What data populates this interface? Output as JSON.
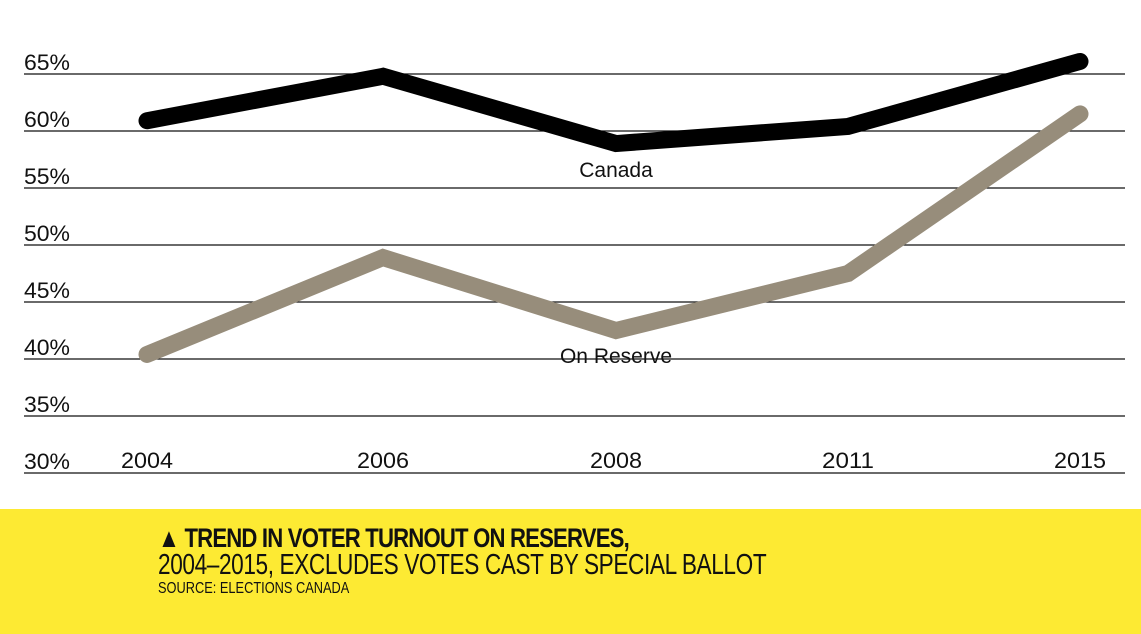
{
  "chart_data": {
    "type": "line",
    "title": "TREND IN VOTER TURNOUT ON RESERVES,",
    "subtitle": "2004–2015, EXCLUDES VOTES CAST BY SPECIAL BALLOT",
    "source": "SOURCE: ELECTIONS CANADA",
    "title_marker": "▲",
    "xlabel": "",
    "ylabel": "",
    "categories": [
      "2004",
      "2006",
      "2008",
      "2011",
      "2015"
    ],
    "y_ticks": [
      "30%",
      "35%",
      "40%",
      "45%",
      "50%",
      "55%",
      "60%",
      "65%"
    ],
    "y_tick_values": [
      30,
      35,
      40,
      45,
      50,
      55,
      60,
      65
    ],
    "ylim": [
      30,
      65
    ],
    "grid": true,
    "legend": "inline-labels",
    "series": [
      {
        "name": "Canada",
        "color": "#000000",
        "values": [
          60.9,
          64.8,
          58.9,
          60.4,
          66.1
        ]
      },
      {
        "name": "On Reserve",
        "color": "#978d7b",
        "values": [
          40.4,
          48.9,
          42.5,
          47.5,
          61.5
        ]
      }
    ]
  },
  "caption": {
    "background": "#fdea33"
  }
}
